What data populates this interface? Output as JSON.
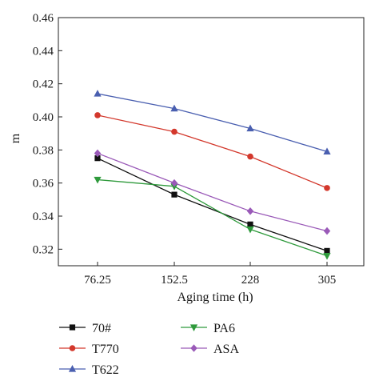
{
  "chart_data": {
    "type": "line",
    "title": "",
    "xlabel": "Aging time (h)",
    "ylabel": "m",
    "categories": [
      "76.25",
      "152.5",
      "228",
      "305"
    ],
    "ylim": [
      0.31,
      0.46
    ],
    "yticks": [
      "0.32",
      "0.34",
      "0.36",
      "0.38",
      "0.40",
      "0.42",
      "0.44",
      "0.46"
    ],
    "grid": false,
    "legend_position": "bottom",
    "series": [
      {
        "name": "70#",
        "values": [
          0.375,
          0.353,
          0.335,
          0.319
        ],
        "color": "#111111",
        "marker": "square"
      },
      {
        "name": "T770",
        "values": [
          0.401,
          0.391,
          0.376,
          0.357
        ],
        "color": "#d3382c",
        "marker": "circle"
      },
      {
        "name": "T622",
        "values": [
          0.414,
          0.405,
          0.393,
          0.379
        ],
        "color": "#4a5fb0",
        "marker": "triangle-up"
      },
      {
        "name": "PA6",
        "values": [
          0.362,
          0.358,
          0.332,
          0.316
        ],
        "color": "#2f9a3c",
        "marker": "triangle-down"
      },
      {
        "name": "ASA",
        "values": [
          0.378,
          0.36,
          0.343,
          0.331
        ],
        "color": "#9a5ab8",
        "marker": "diamond"
      }
    ]
  }
}
